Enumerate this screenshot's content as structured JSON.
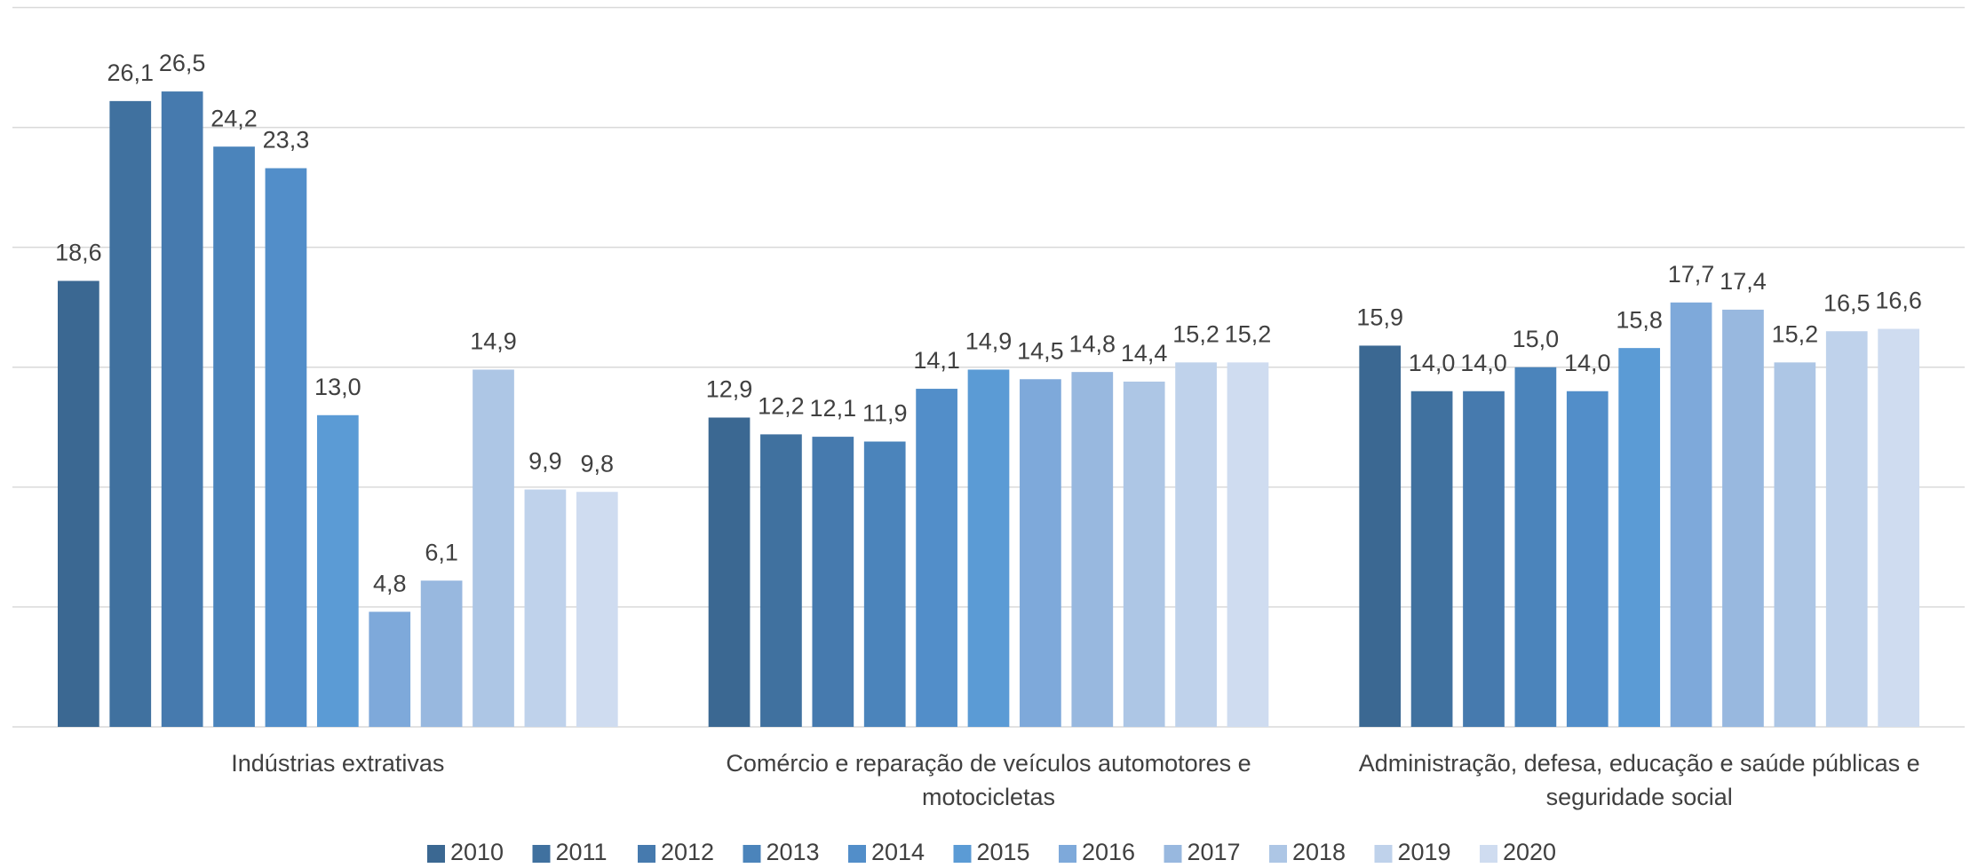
{
  "chart_data": {
    "type": "bar",
    "categories": [
      "Indústrias extrativas",
      "Comércio e reparação de veículos automotores e motocicletas",
      "Administração, defesa, educação e saúde públicas e seguridade social"
    ],
    "series": [
      {
        "name": "2010",
        "color": "#3b6892",
        "values": [
          18.6,
          12.9,
          15.9
        ],
        "value_labels": [
          "18,6",
          "12,9",
          "15,9"
        ]
      },
      {
        "name": "2011",
        "color": "#40719f",
        "values": [
          26.1,
          12.2,
          14.0
        ],
        "value_labels": [
          "26,1",
          "12,2",
          "14,0"
        ]
      },
      {
        "name": "2012",
        "color": "#467aae",
        "values": [
          26.5,
          12.1,
          14.0
        ],
        "value_labels": [
          "26,5",
          "12,1",
          "14,0"
        ]
      },
      {
        "name": "2013",
        "color": "#4b84bb",
        "values": [
          24.2,
          11.9,
          15.0
        ],
        "value_labels": [
          "24,2",
          "11,9",
          "15,0"
        ]
      },
      {
        "name": "2014",
        "color": "#528ec9",
        "values": [
          23.3,
          14.1,
          14.0
        ],
        "value_labels": [
          "23,3",
          "14,1",
          "14,0"
        ]
      },
      {
        "name": "2015",
        "color": "#5b9bd5",
        "values": [
          13.0,
          14.9,
          15.8
        ],
        "value_labels": [
          "13,0",
          "14,9",
          "15,8"
        ]
      },
      {
        "name": "2016",
        "color": "#7ea9da",
        "values": [
          4.8,
          14.5,
          17.7
        ],
        "value_labels": [
          "4,8",
          "14,5",
          "17,7"
        ]
      },
      {
        "name": "2017",
        "color": "#98b8df",
        "values": [
          6.1,
          14.8,
          17.4
        ],
        "value_labels": [
          "6,1",
          "14,8",
          "17,4"
        ]
      },
      {
        "name": "2018",
        "color": "#adc6e5",
        "values": [
          14.9,
          14.4,
          15.2
        ],
        "value_labels": [
          "14,9",
          "14,4",
          "15,2"
        ]
      },
      {
        "name": "2019",
        "color": "#bfd2eb",
        "values": [
          9.9,
          15.2,
          16.5
        ],
        "value_labels": [
          "9,9",
          "15,2",
          "16,5"
        ]
      },
      {
        "name": "2020",
        "color": "#cfdcf0",
        "values": [
          9.8,
          15.2,
          16.6
        ],
        "value_labels": [
          "9,8",
          "15,2",
          "16,6"
        ]
      }
    ],
    "ylim": [
      0,
      30
    ],
    "yticks": [
      0,
      5,
      10,
      15,
      20,
      25,
      30
    ],
    "grid": true,
    "legend": "bottom"
  }
}
